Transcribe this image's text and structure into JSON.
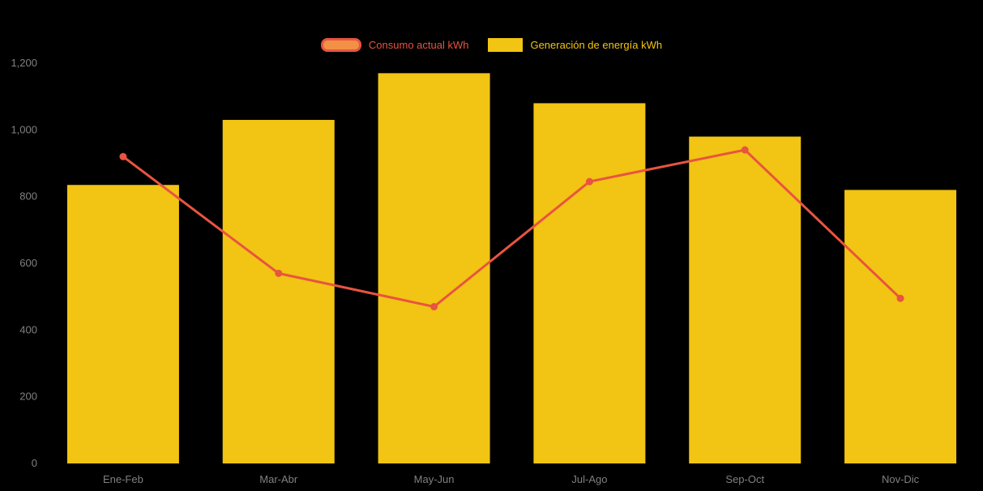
{
  "colors": {
    "background": "#000000",
    "bar": "#F2C413",
    "line": "#E85440",
    "legend_consumo_fill": "#F29045",
    "axis_text": "#808080"
  },
  "legend": {
    "items": [
      {
        "label": "Consumo actual kWh"
      },
      {
        "label": "Generación de energía kWh"
      }
    ]
  },
  "chart_data": {
    "type": "combo",
    "title": "",
    "xlabel": "",
    "ylabel": "",
    "categories": [
      "Ene-Feb",
      "Mar-Abr",
      "May-Jun",
      "Jul-Ago",
      "Sep-Oct",
      "Nov-Dic"
    ],
    "series": [
      {
        "name": "Consumo actual kWh",
        "type": "line",
        "color": "#E85440",
        "values": [
          920,
          570,
          470,
          845,
          940,
          495
        ]
      },
      {
        "name": "Generación de energía kWh",
        "type": "bar",
        "color": "#F2C413",
        "values": [
          835,
          1030,
          1170,
          1080,
          980,
          820
        ]
      }
    ],
    "ylim": [
      0,
      1200
    ],
    "yticks": [
      [
        0,
        "0"
      ],
      [
        200,
        "200"
      ],
      [
        400,
        "400"
      ],
      [
        600,
        "600"
      ],
      [
        800,
        "800"
      ],
      [
        1000,
        "1,000"
      ],
      [
        1200,
        "1,200"
      ]
    ],
    "grid": false,
    "legend_position": "top"
  }
}
